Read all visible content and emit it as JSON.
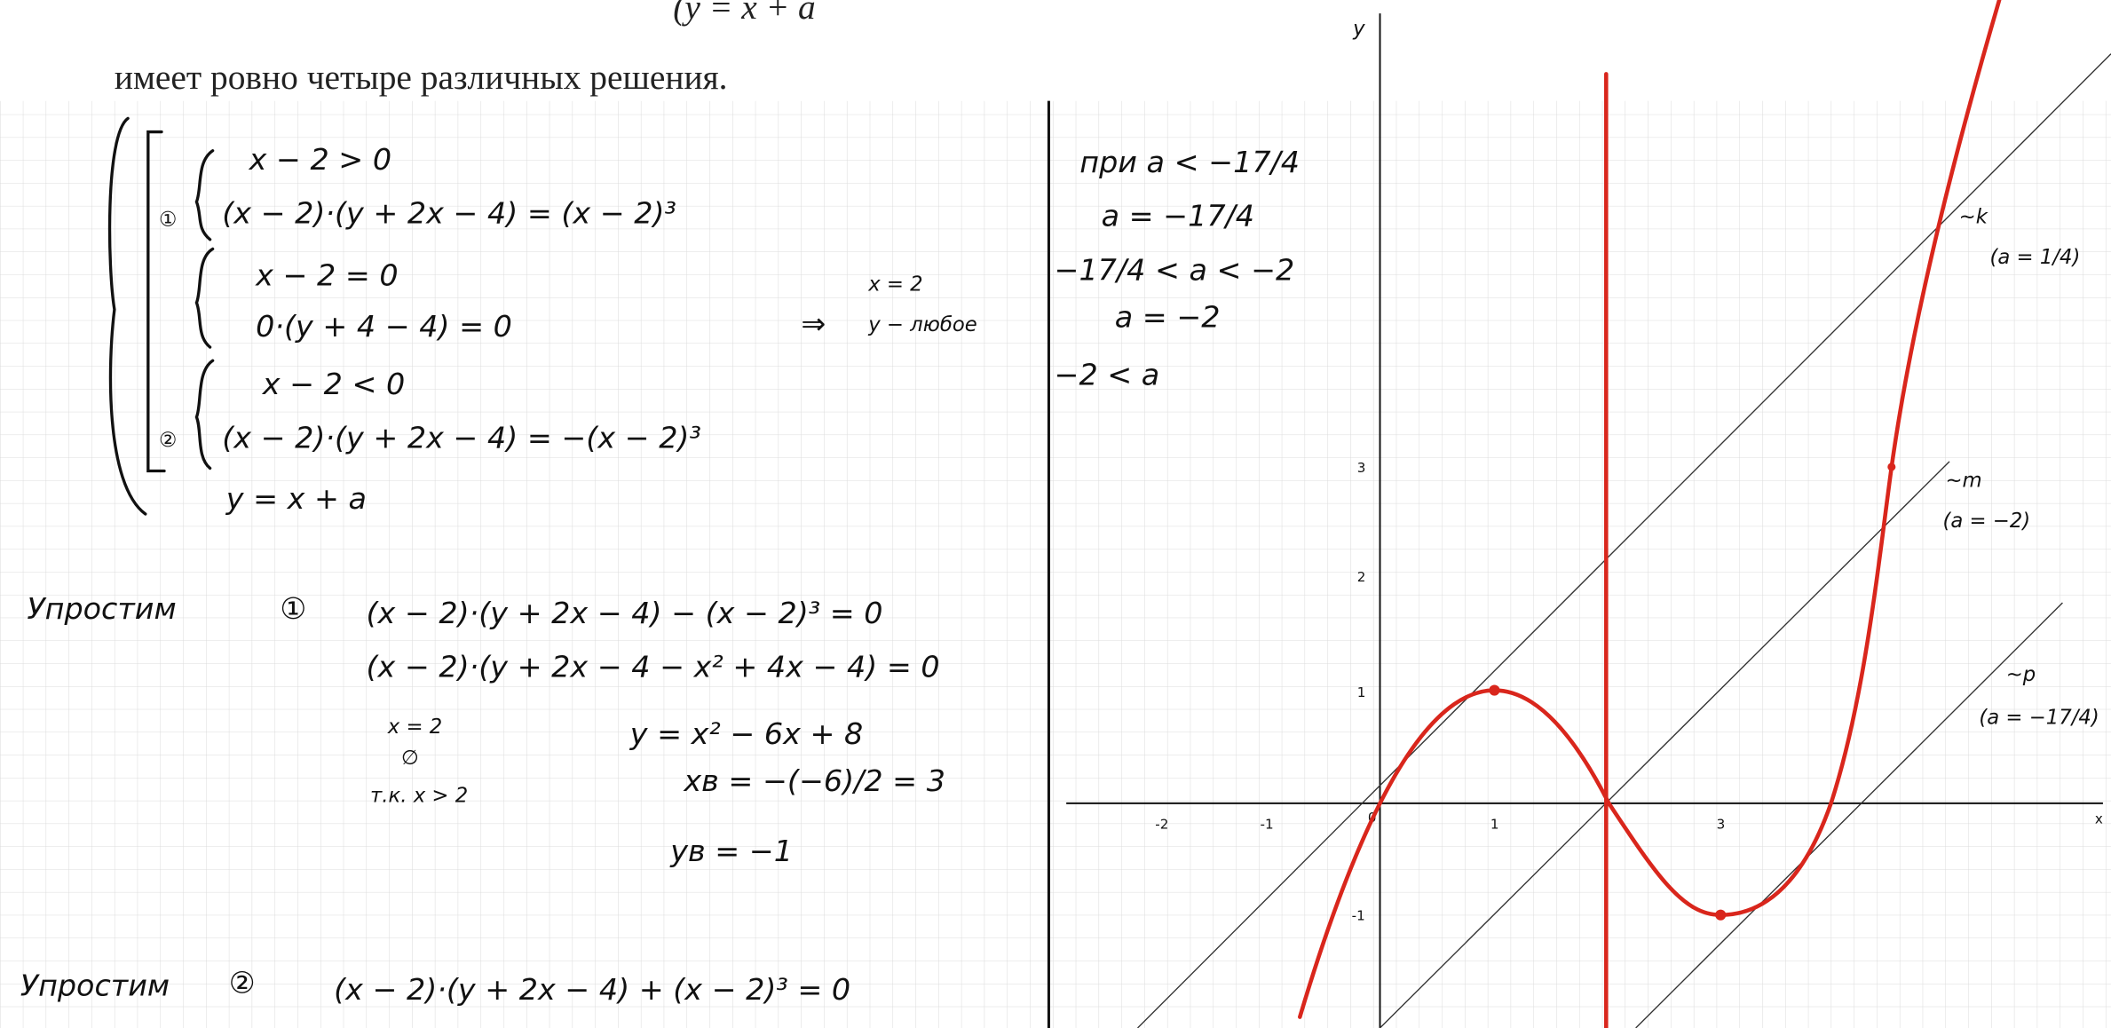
{
  "header": {
    "formula_tail": "(y = x + a",
    "statement": "имеет ровно четыре различных решения."
  },
  "system": {
    "case1_condition": "x − 2 > 0",
    "case1_marker": "①",
    "case1_equation": "(x − 2)·(y + 2x − 4) = (x − 2)³",
    "case2_condition": "x − 2 = 0",
    "case2_equation": "0·(y + 4 − 4) = 0",
    "case2_arrow": "⇒",
    "case2_x": "x = 2",
    "case2_y": "y − любое",
    "case3_condition": "x − 2 < 0",
    "case3_marker": "②",
    "case3_equation": "(x − 2)·(y + 2x − 4) = −(x − 2)³",
    "line_equation": "y = x + a"
  },
  "simplify1": {
    "label": "Упростим",
    "marker": "①",
    "step1": "(x − 2)·(y + 2x − 4) − (x − 2)³ = 0",
    "step2": "(x − 2)·(y + 2x − 4 − x² + 4x − 4) = 0",
    "root": "x = 2",
    "root_empty": "∅",
    "root_reason": "т.к. x > 2",
    "result": "y = x² − 6x + 8",
    "vertex_x": "xв = −(−6)/2 = 3",
    "vertex_y": "yв = −1"
  },
  "simplify2": {
    "label": "Упростим",
    "marker": "②",
    "step1": "(x − 2)·(y + 2x − 4) + (x − 2)³ = 0"
  },
  "cases": [
    "при  a < −17/4",
    "a = −17/4",
    "−17/4 < a < −2",
    "a = −2",
    "−2 < a"
  ],
  "graph": {
    "y_axis": "y",
    "x_axis": "x",
    "x_ticks": [
      "-2",
      "-1",
      "0",
      "1",
      "3"
    ],
    "y_ticks": [
      "3",
      "2",
      "1",
      "-1"
    ],
    "lines": [
      {
        "name": "~k",
        "condition": "(a = 1/4)"
      },
      {
        "name": "~m",
        "condition": "(a = −2)"
      },
      {
        "name": "~p",
        "condition": "(a = −17/4)"
      }
    ]
  }
}
